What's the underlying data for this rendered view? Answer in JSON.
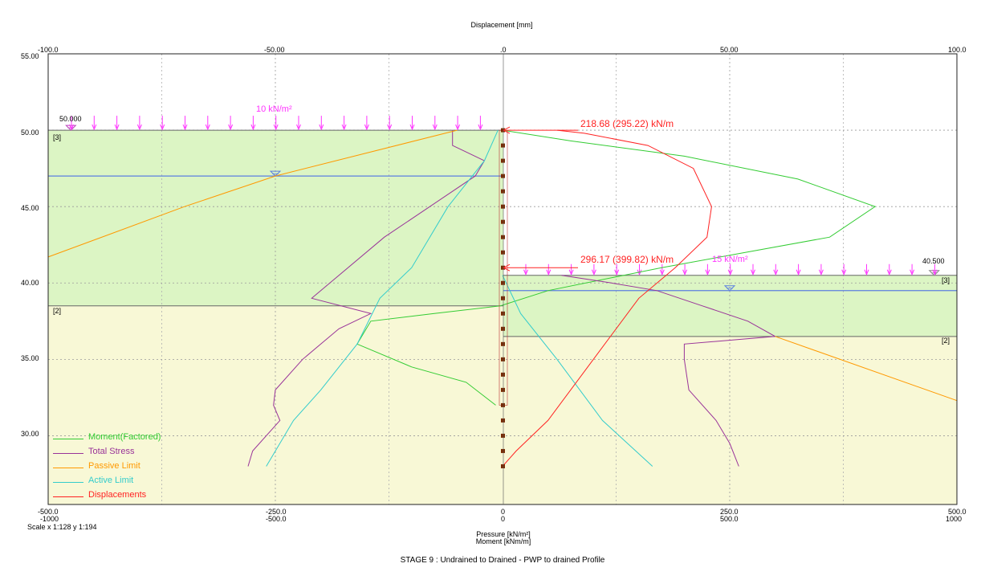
{
  "header": {
    "top_axis_title": "Displacement [mm]"
  },
  "axes": {
    "top_ticks": [
      "-100.0",
      "-50.00",
      ".0",
      "50.00",
      "100.0"
    ],
    "left_ticks": [
      "55.00",
      "50.00",
      "45.00",
      "40.00",
      "35.00",
      "30.00"
    ],
    "bottom_pressure_ticks": [
      "-500.0",
      "-250.0",
      "0",
      "250.0",
      "500.0"
    ],
    "bottom_moment_ticks": [
      "-1000",
      "-500.0",
      "0",
      "500.0",
      "1000"
    ],
    "bottom_title_line1": "Pressure [kN/m²]",
    "bottom_title_line2": "Moment [kNm/m]",
    "scale_text": "Scale x 1:128  y 1:194"
  },
  "layers": {
    "left_top": "[3]",
    "left_lower": "[2]",
    "right_top": "[3]",
    "right_lower": "[2]"
  },
  "annotations": {
    "left_ground_level": "50.000",
    "right_ground_level": "40.500",
    "left_surcharge": "10 kN/m²",
    "right_surcharge": "15 kN/m²",
    "prop_upper": "218.68 (295.22) kN/m",
    "prop_lower": "296.17 (399.82) kN/m"
  },
  "legend": [
    {
      "label": "Moment(Factored)",
      "color": "#33cc33"
    },
    {
      "label": "Total Stress",
      "color": "#993399"
    },
    {
      "label": "Passive Limit",
      "color": "#ff9900"
    },
    {
      "label": "Active Limit",
      "color": "#33cccc"
    },
    {
      "label": "Displacements",
      "color": "#ff0000"
    }
  ],
  "footer": {
    "stage_title": "STAGE 9 : Undrained to Drained - PWP to drained Profile"
  },
  "colors": {
    "soil_upper": "#dcf5c4",
    "soil_lower": "#f8f8d6",
    "surcharge": "#ff33ff",
    "prop_text": "#ff2222",
    "water": "#5b7fe0",
    "wall": "#c8c8c8",
    "anchor": "#7a2a00"
  },
  "chart_data": {
    "type": "line",
    "x_pressure_range": [
      -500,
      500
    ],
    "x_moment_range": [
      -1000,
      1000
    ],
    "x_displacement_range": [
      -100,
      100
    ],
    "y_elevation_range": [
      25.5,
      55
    ],
    "elevations": {
      "left_ground": 50.0,
      "right_ground": 40.5,
      "left_layer_boundary": 38.5,
      "right_layer_boundary": 36.5,
      "left_water_table": 47.0,
      "right_water_table": 39.5,
      "wall_toe": 32.0,
      "pile_bottom": 28.0,
      "upper_prop": 50.0,
      "lower_prop": 41.0
    },
    "series": [
      {
        "name": "Moment(Factored)",
        "unit": "kNm/m",
        "points": [
          [
            0,
            50
          ],
          [
            150,
            49.3
          ],
          [
            400,
            48.3
          ],
          [
            650,
            46.8
          ],
          [
            820,
            45
          ],
          [
            720,
            43
          ],
          [
            350,
            41
          ],
          [
            100,
            39.5
          ],
          [
            -5,
            38.5
          ],
          [
            -150,
            38
          ],
          [
            -290,
            37.5
          ],
          [
            -320,
            36
          ],
          [
            -200,
            34.5
          ],
          [
            -80,
            33.5
          ],
          [
            -15,
            32
          ]
        ]
      },
      {
        "name": "Total Stress",
        "unit": "kN/m²",
        "points": [
          [
            -55,
            50
          ],
          [
            -55,
            49
          ],
          [
            -20,
            48
          ],
          [
            -30,
            47
          ],
          [
            -80,
            45
          ],
          [
            -130,
            43
          ],
          [
            -190,
            40
          ],
          [
            -210,
            39
          ],
          [
            -145,
            38
          ],
          [
            -180,
            37
          ],
          [
            -200,
            36
          ],
          [
            -220,
            35
          ],
          [
            -250,
            33
          ],
          [
            -252,
            32
          ],
          [
            -245,
            31
          ],
          [
            -275,
            29
          ],
          [
            -280,
            28
          ]
        ]
      },
      {
        "name": "Total Stress (right)",
        "unit": "kN/m²",
        "points": [
          [
            65,
            40.5
          ],
          [
            120,
            40
          ],
          [
            170,
            39.5
          ],
          [
            220,
            38.5
          ],
          [
            270,
            37.5
          ],
          [
            300,
            36.5
          ],
          [
            200,
            36
          ],
          [
            200,
            35
          ],
          [
            205,
            33
          ],
          [
            235,
            31
          ],
          [
            250,
            29.5
          ],
          [
            260,
            28
          ]
        ]
      },
      {
        "name": "Passive Limit",
        "unit": "kN/m²",
        "points": [
          [
            -500,
            41.7
          ],
          [
            -350,
            45
          ],
          [
            -250,
            47
          ],
          [
            -50,
            50
          ]
        ]
      },
      {
        "name": "Passive Limit (right)",
        "unit": "kN/m²",
        "points": [
          [
            300,
            36.5
          ],
          [
            500,
            32.3
          ]
        ]
      },
      {
        "name": "Active Limit",
        "unit": "kN/m²",
        "points": [
          [
            -5,
            50
          ],
          [
            -20,
            48
          ],
          [
            -60,
            45
          ],
          [
            -100,
            41
          ],
          [
            -135,
            39
          ],
          [
            -160,
            36
          ],
          [
            -200,
            33
          ],
          [
            -230,
            31
          ],
          [
            -260,
            28
          ]
        ]
      },
      {
        "name": "Active Limit (right)",
        "unit": "kN/m²",
        "points": [
          [
            0,
            40.5
          ],
          [
            20,
            38
          ],
          [
            60,
            35
          ],
          [
            110,
            31
          ],
          [
            165,
            28
          ]
        ]
      },
      {
        "name": "Displacements",
        "unit": "mm",
        "points": [
          [
            0,
            28
          ],
          [
            3,
            29
          ],
          [
            10,
            31
          ],
          [
            20,
            35
          ],
          [
            30,
            39
          ],
          [
            38,
            41
          ],
          [
            45,
            43
          ],
          [
            46,
            45
          ],
          [
            42,
            47.5
          ],
          [
            32,
            49
          ],
          [
            18,
            49.8
          ],
          [
            12,
            50
          ]
        ]
      }
    ]
  }
}
